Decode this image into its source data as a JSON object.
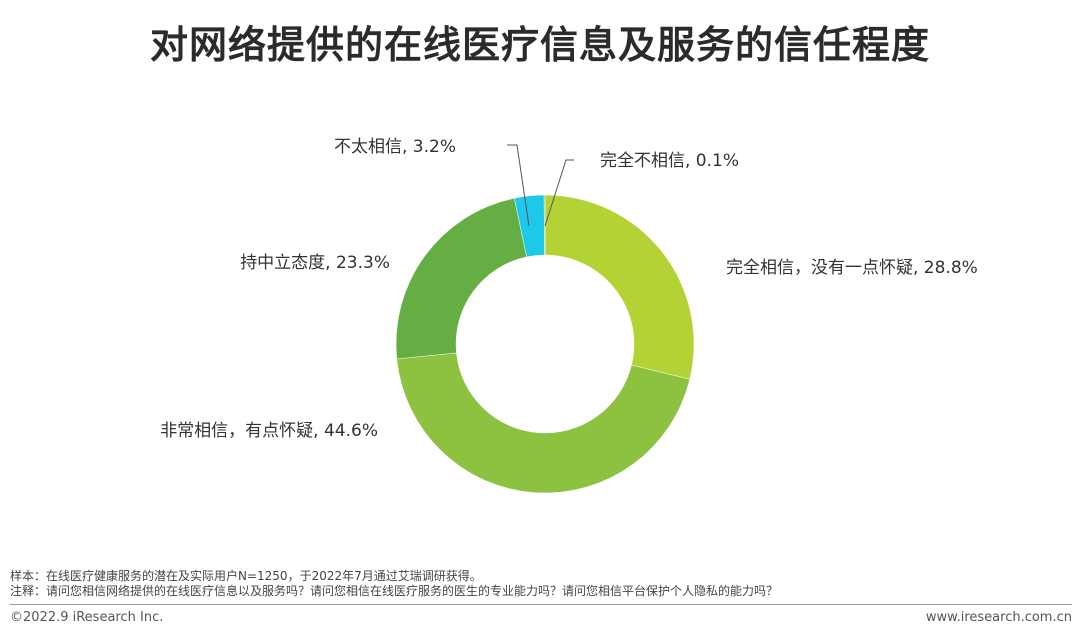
{
  "title": "对网络提供的在线医疗信息及服务的信任程度",
  "chart_data": {
    "type": "pie",
    "donut": true,
    "slices": [
      {
        "label": "完全相信，没有一点怀疑, 28.8%",
        "value": 28.8,
        "color": "#b3d334"
      },
      {
        "label": "非常相信，有点怀疑, 44.6%",
        "value": 44.6,
        "color": "#8cc23f"
      },
      {
        "label": "持中立态度, 23.3%",
        "value": 23.3,
        "color": "#64ae44"
      },
      {
        "label": "不太相信, 3.2%",
        "value": 3.2,
        "color": "#1ec8e8"
      },
      {
        "label": "完全不相信, 0.1%",
        "value": 0.1,
        "color": "#8c9a2a"
      }
    ]
  },
  "notes": {
    "sample": "样本：在线医疗健康服务的潜在及实际用户N=1250，于2022年7月通过艾瑞调研获得。",
    "annotation": "注释：请问您相信网络提供的在线医疗信息以及服务吗？请问您相信在线医疗服务的医生的专业能力吗？请问您相信平台保护个人隐私的能力吗？"
  },
  "footer": {
    "copyright": "©2022.9 iResearch Inc.",
    "website": "www.iresearch.com.cn"
  }
}
